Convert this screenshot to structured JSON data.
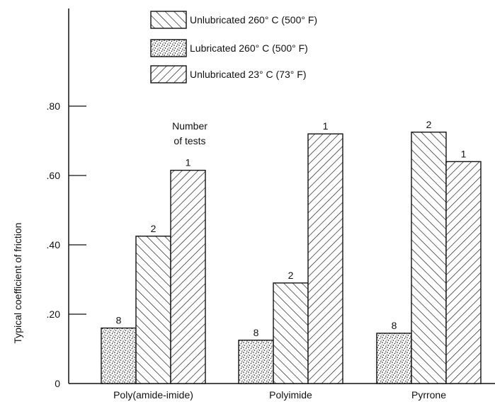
{
  "chart_data": {
    "type": "bar",
    "title": "",
    "xlabel": "",
    "ylabel": "Typical coefficient of friction",
    "ylim": [
      0,
      1.0
    ],
    "yticks": [
      {
        "value": 0,
        "label": "0"
      },
      {
        "value": 0.2,
        "label": ".20"
      },
      {
        "value": 0.4,
        "label": ".40"
      },
      {
        "value": 0.6,
        "label": ".60"
      },
      {
        "value": 0.8,
        "label": ".80"
      }
    ],
    "categories": [
      "Poly(amide-imide)",
      "Polyimide",
      "Pyrrone"
    ],
    "series": [
      {
        "name": "Lubricated 260° C (500° F)",
        "pattern": "stipple",
        "values": [
          0.16,
          0.125,
          0.145
        ],
        "tests": [
          "8",
          "8",
          "8"
        ]
      },
      {
        "name": "Unlubricated 260° C (500° F)",
        "pattern": "backslash",
        "values": [
          0.425,
          0.29,
          0.725
        ],
        "tests": [
          "2",
          "2",
          "2"
        ]
      },
      {
        "name": "Unlubricated 23° C (73° F)",
        "pattern": "slash",
        "values": [
          0.615,
          0.72,
          0.64
        ],
        "tests": [
          "1",
          "1",
          "1"
        ]
      }
    ],
    "legend_order": [
      1,
      0,
      2
    ],
    "legend_position": "top-left",
    "annotation": [
      "Number",
      "of tests"
    ],
    "grid": false
  },
  "colors": {
    "ink": "#111111",
    "background": "#ffffff"
  }
}
